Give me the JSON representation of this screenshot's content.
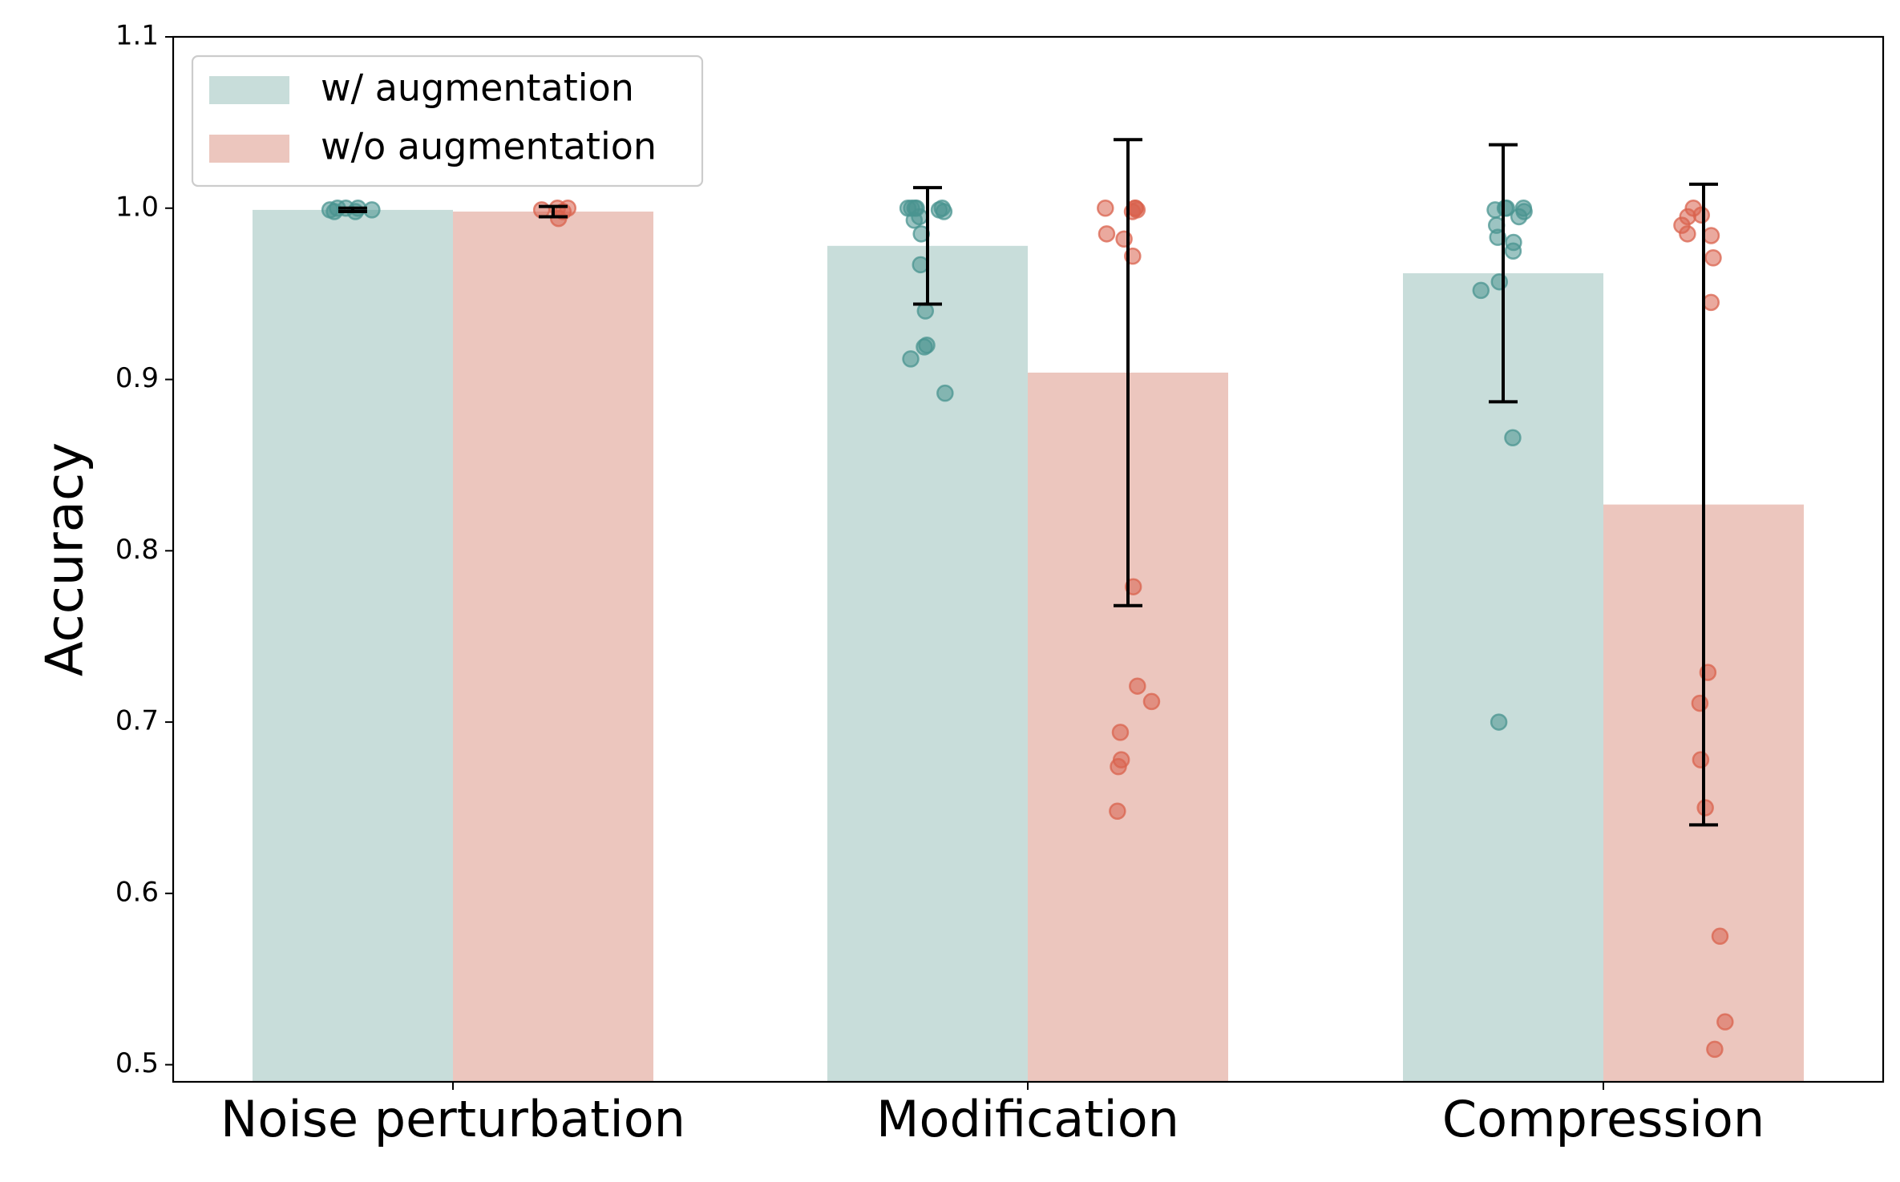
{
  "chart_data": {
    "type": "bar",
    "title": "",
    "xlabel": "",
    "ylabel": "Accuracy",
    "ylim": [
      0.49,
      1.1
    ],
    "yticks": [
      "0.5",
      "0.6",
      "0.7",
      "0.8",
      "0.9",
      "1.0",
      "1.1"
    ],
    "legend_position": "top-left",
    "categories": [
      "Noise perturbation",
      "Modification",
      "Compression"
    ],
    "series": [
      {
        "name": "w/ augmentation",
        "bar_color": "#c8ddda",
        "point_color": "#4a9490",
        "values": [
          0.999,
          0.978,
          0.962
        ],
        "errors": [
          0.001,
          0.034,
          0.075
        ],
        "points": [
          [
            1.0,
            0.998,
            1.0,
            0.999,
            0.998,
            1.0,
            0.999
          ],
          [
            1.0,
            1.0,
            0.999,
            0.995,
            1.0,
            0.993,
            0.985,
            0.967,
            0.94,
            0.92,
            0.919,
            0.912,
            0.892,
            1.0,
            1.0,
            0.998
          ],
          [
            1.0,
            1.0,
            0.999,
            0.995,
            0.99,
            0.98,
            0.983,
            0.975,
            0.957,
            0.952,
            0.866,
            0.7,
            1.0,
            0.998
          ]
        ]
      },
      {
        "name": "w/o augmentation",
        "bar_color": "#ecc6be",
        "point_color": "#d9634e",
        "values": [
          0.998,
          0.904,
          0.827
        ],
        "errors": [
          0.003,
          0.136,
          0.187
        ],
        "points": [
          [
            1.0,
            0.998,
            0.994,
            1.0,
            0.999
          ],
          [
            1.0,
            0.999,
            1.0,
            0.998,
            0.985,
            0.982,
            0.972,
            0.779,
            0.721,
            0.712,
            0.694,
            0.678,
            0.674,
            0.648,
            1.0
          ],
          [
            1.0,
            0.996,
            0.99,
            0.985,
            0.984,
            0.971,
            0.945,
            0.729,
            0.711,
            0.678,
            0.65,
            0.575,
            0.525,
            0.509,
            0.995
          ]
        ]
      }
    ]
  }
}
